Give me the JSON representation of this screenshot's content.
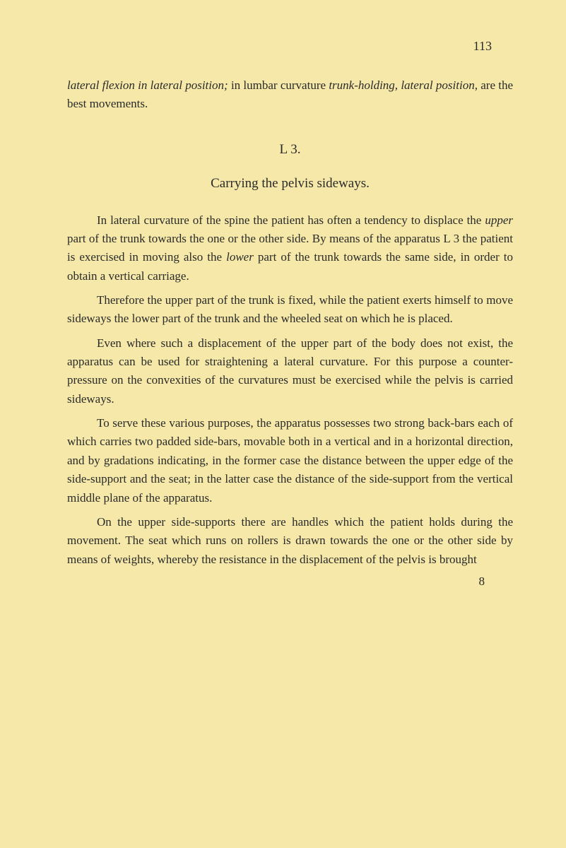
{
  "page_number": "113",
  "intro": {
    "part1_italic": "lateral flexion in lateral position;",
    "part2_plain": " in lumbar curvature ",
    "part3_italic": "trunk-holding, lateral position,",
    "part4_plain": " are the best movements."
  },
  "section_label": "L 3.",
  "section_title": "Carrying the pelvis sideways.",
  "para1": {
    "t1": "In lateral curvature of the spine the patient has often a tendency to displace the ",
    "i1": "upper",
    "t2": " part of the trunk towards the one or the other side. By means of the apparatus L 3 the patient is exercised in moving also the ",
    "i2": "lower",
    "t3": " part of the trunk towards the same side, in order to obtain a vertical carriage."
  },
  "para2": "Therefore the upper part of the trunk is fixed, while the patient exerts himself to move sideways the lower part of the trunk and the wheeled seat on which he is placed.",
  "para3": "Even where such a displacement of the upper part of the body does not exist, the apparatus can be used for straightening a lateral curvature. For this purpose a counter-pressure on the convexities of the curvatures must be exercised while the pelvis is carried sideways.",
  "para4": "To serve these various purposes, the apparatus possesses two strong back-bars each of which carries two padded side-bars, movable both in a vertical and in a horizontal direction, and by gradations indicating, in the former case the distance between the upper edge of the side-support and the seat; in the latter case the distance of the side-support from the vertical middle plane of the apparatus.",
  "para5": "On the upper side-supports there are handles which the patient holds during the movement. The seat which runs on rollers is drawn towards the one or the other side by means of weights, whereby the resistance in the displacement of the pelvis is brought",
  "footer_number": "8",
  "colors": {
    "background": "#f5e8a8",
    "text": "#2a2a2a"
  },
  "typography": {
    "body_fontsize": 17,
    "title_fontsize": 19,
    "font_family": "Georgia, Times New Roman, serif",
    "line_height": 1.55
  }
}
